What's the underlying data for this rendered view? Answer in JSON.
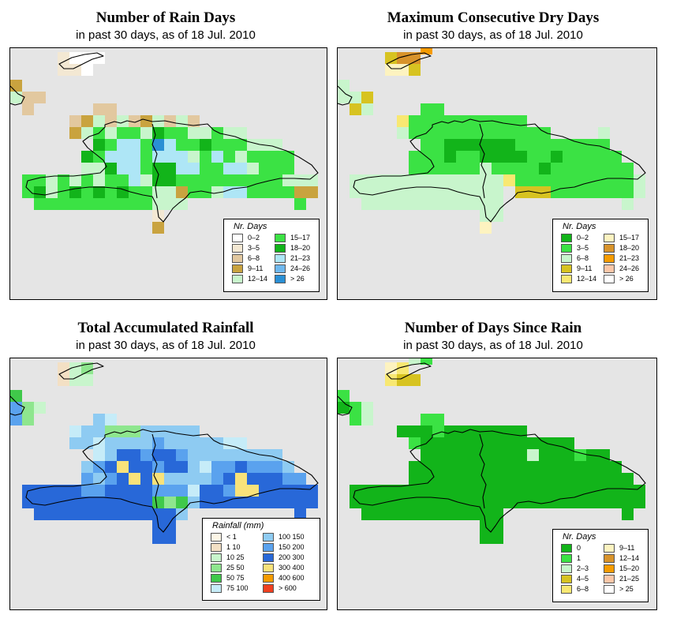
{
  "panels": [
    {
      "title": "Number of Rain Days",
      "subtitle": "in past 30 days, as of  18 Jul. 2010",
      "legend_title": "Nr. Days",
      "legend": [
        {
          "label": "0–2",
          "color": "#ffffff"
        },
        {
          "label": "3–5",
          "color": "#f3e8d3"
        },
        {
          "label": "6–8",
          "color": "#e2c89f"
        },
        {
          "label": "9–11",
          "color": "#c9a33f"
        },
        {
          "label": "12–14",
          "color": "#c8f5cc"
        },
        {
          "label": "15–17",
          "color": "#3be244"
        },
        {
          "label": "18–20",
          "color": "#12b41a"
        },
        {
          "label": "21–23",
          "color": "#aee6f6"
        },
        {
          "label": "24–26",
          "color": "#6fb8ee"
        },
        {
          "label": "> 26",
          "color": "#2a8fd4"
        }
      ]
    },
    {
      "title": "Maximum Consecutive Dry Days",
      "subtitle": "in past 30 days, as of  18 Jul. 2010",
      "legend_title": "Nr. Days",
      "legend": [
        {
          "label": "0–2",
          "color": "#12b41a"
        },
        {
          "label": "3–5",
          "color": "#3be244"
        },
        {
          "label": "6–8",
          "color": "#c8f5cc"
        },
        {
          "label": "9–11",
          "color": "#d7c321"
        },
        {
          "label": "12–14",
          "color": "#f8e872"
        },
        {
          "label": "15–17",
          "color": "#fdf3c0"
        },
        {
          "label": "18–20",
          "color": "#d8932b"
        },
        {
          "label": "21–23",
          "color": "#f59b00"
        },
        {
          "label": "24–26",
          "color": "#fcc7a8"
        },
        {
          "label": "> 26",
          "color": "#ffffff"
        }
      ]
    },
    {
      "title": "Total Accumulated Rainfall",
      "subtitle": "in past 30 days, as of  18 Jul. 2010",
      "legend_title": "Rainfall (mm)",
      "legend": [
        {
          "label": "< 1",
          "color": "#fdf6e6"
        },
        {
          "label": "1   10",
          "color": "#f3e0c4"
        },
        {
          "label": "10   25",
          "color": "#c8f5cc"
        },
        {
          "label": "25   50",
          "color": "#8ee68e"
        },
        {
          "label": "50   75",
          "color": "#40c94a"
        },
        {
          "label": "75   100",
          "color": "#c6ecf8"
        },
        {
          "label": "100   150",
          "color": "#8ecbf2"
        },
        {
          "label": "150   200",
          "color": "#5aa2ee"
        },
        {
          "label": "200   300",
          "color": "#2868d8"
        },
        {
          "label": "300   400",
          "color": "#f8e27a"
        },
        {
          "label": "400   600",
          "color": "#f59b00"
        },
        {
          "label": "> 600",
          "color": "#f04020"
        }
      ]
    },
    {
      "title": "Number of Days Since Rain",
      "subtitle": "in past 30 days, as of  18 Jul. 2010",
      "legend_title": "Nr. Days",
      "legend": [
        {
          "label": "0",
          "color": "#12b41a"
        },
        {
          "label": "1",
          "color": "#3be244"
        },
        {
          "label": "2–3",
          "color": "#c8f5cc"
        },
        {
          "label": "4–5",
          "color": "#d7c321"
        },
        {
          "label": "6–8",
          "color": "#f8e872"
        },
        {
          "label": "9–11",
          "color": "#fdf3c0"
        },
        {
          "label": "12–14",
          "color": "#d8932b"
        },
        {
          "label": "15–20",
          "color": "#f59b00"
        },
        {
          "label": "21–25",
          "color": "#fcc7a8"
        },
        {
          "label": "> 25",
          "color": "#ffffff"
        }
      ]
    }
  ]
}
